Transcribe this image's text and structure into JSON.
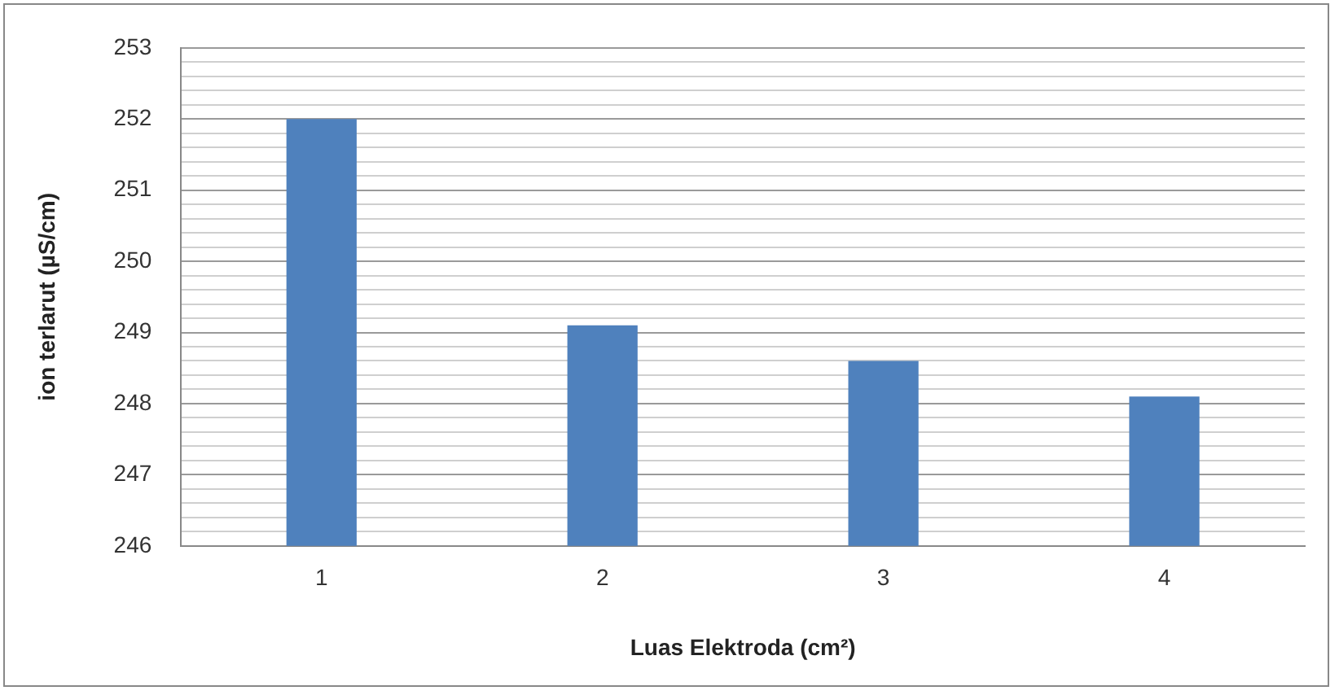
{
  "chart_data": {
    "type": "bar",
    "xlabel": "Luas Elektroda (cm²)",
    "ylabel": "ion terlarut (µS/cm)",
    "categories": [
      "1",
      "2",
      "3",
      "4"
    ],
    "values": [
      252,
      249.1,
      248.6,
      248.1
    ],
    "color": "#4f81bd",
    "ylim": [
      246,
      253
    ],
    "yticks": [
      246,
      {
        "value": 246.2,
        "label": null
      },
      {
        "value": 246.4,
        "label": null
      },
      {
        "value": 246.6,
        "label": null
      },
      {
        "value": 246.8,
        "label": null
      },
      247,
      {
        "value": 247.2,
        "label": null
      },
      {
        "value": 247.4,
        "label": null
      },
      {
        "value": 247.6,
        "label": null
      },
      {
        "value": 247.8,
        "label": null
      },
      248,
      {
        "value": 248.2,
        "label": null
      },
      {
        "value": 248.4,
        "label": null
      },
      {
        "value": 248.6,
        "label": null
      },
      {
        "value": 248.8,
        "label": null
      },
      249,
      {
        "value": 249.2,
        "label": null
      },
      {
        "value": 249.4,
        "label": null
      },
      {
        "value": 249.6,
        "label": null
      },
      {
        "value": 249.8,
        "label": null
      },
      250,
      {
        "value": 250.2,
        "label": null
      },
      {
        "value": 250.4,
        "label": null
      },
      {
        "value": 250.6,
        "label": null
      },
      {
        "value": 250.8,
        "label": null
      },
      251,
      {
        "value": 251.2,
        "label": null
      },
      {
        "value": 251.4,
        "label": null
      },
      {
        "value": 251.6,
        "label": null
      },
      {
        "value": 251.8,
        "label": null
      },
      252,
      {
        "value": 252.2,
        "label": null
      },
      {
        "value": 252.4,
        "label": null
      },
      {
        "value": 252.6,
        "label": null
      },
      {
        "value": 252.8,
        "label": null
      },
      253
    ],
    "grid": "y",
    "legend": false
  }
}
